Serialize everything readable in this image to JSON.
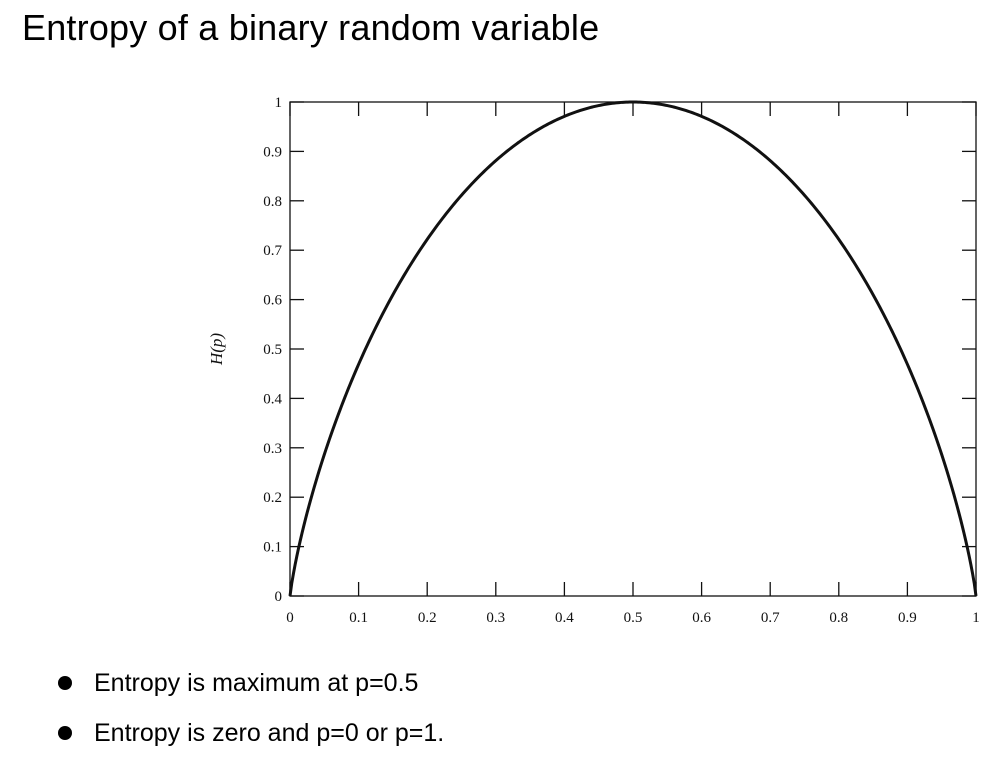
{
  "slide": {
    "title": "Entropy of a binary random variable",
    "bullets": [
      "Entropy is maximum at p=0.5",
      "Entropy is zero and p=0 or p=1."
    ]
  },
  "chart_data": {
    "type": "line",
    "title": "",
    "xlabel": "",
    "ylabel": "H(p)",
    "xlim": [
      0,
      1
    ],
    "ylim": [
      0,
      1
    ],
    "grid": false,
    "x_ticks": [
      0,
      0.1,
      0.2,
      0.3,
      0.4,
      0.5,
      0.6,
      0.7,
      0.8,
      0.9,
      1
    ],
    "x_tick_labels": [
      "0",
      "0.1",
      "0.2",
      "0.3",
      "0.4",
      "0.5",
      "0.6",
      "0.7",
      "0.8",
      "0.9",
      "1"
    ],
    "y_ticks": [
      0,
      0.1,
      0.2,
      0.3,
      0.4,
      0.5,
      0.6,
      0.7,
      0.8,
      0.9,
      1
    ],
    "y_tick_labels": [
      "0",
      "0.1",
      "0.2",
      "0.3",
      "0.4",
      "0.5",
      "0.6",
      "0.7",
      "0.8",
      "0.9",
      "1"
    ],
    "series": [
      {
        "x": [
          0,
          0.01,
          0.02,
          0.05,
          0.1,
          0.15,
          0.2,
          0.25,
          0.3,
          0.35,
          0.4,
          0.45,
          0.5,
          0.55,
          0.6,
          0.65,
          0.7,
          0.75,
          0.8,
          0.85,
          0.9,
          0.95,
          0.98,
          0.99,
          1
        ],
        "y": [
          0,
          0.081,
          0.141,
          0.286,
          0.469,
          0.61,
          0.722,
          0.811,
          0.881,
          0.934,
          0.971,
          0.993,
          1,
          0.993,
          0.971,
          0.934,
          0.881,
          0.811,
          0.722,
          0.61,
          0.469,
          0.286,
          0.141,
          0.081,
          0
        ],
        "color": "#111111"
      }
    ]
  }
}
